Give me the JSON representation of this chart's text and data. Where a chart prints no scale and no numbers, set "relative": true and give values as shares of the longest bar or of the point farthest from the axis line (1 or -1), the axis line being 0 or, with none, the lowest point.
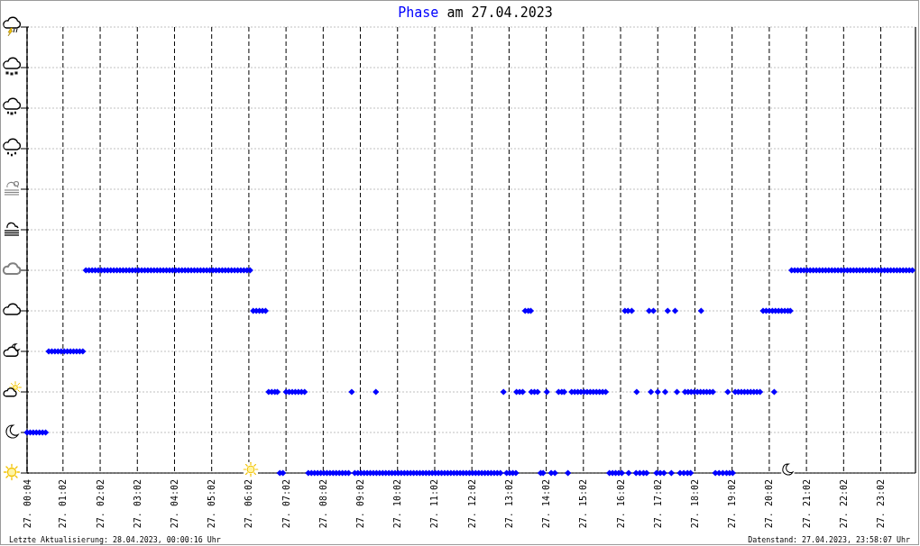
{
  "chart_data": {
    "type": "scatter",
    "title": "am 27.04.2023",
    "relative": true,
    "xlim": [
      "2023-04-27T00:04",
      "2023-04-27T23:58"
    ],
    "xticks": [
      {
        "value": "2023-04-27T00:04",
        "label": "27. 00:04"
      },
      {
        "value": "2023-04-27T01:02",
        "label": "27. 01:02"
      },
      {
        "value": "2023-04-27T02:02",
        "label": "27. 02:02"
      },
      {
        "value": "2023-04-27T03:02",
        "label": "27. 03:02"
      },
      {
        "value": "2023-04-27T04:02",
        "label": "27. 04:02"
      },
      {
        "value": "2023-04-27T05:02",
        "label": "27. 05:02"
      },
      {
        "value": "2023-04-27T06:02",
        "label": "27. 06:02"
      },
      {
        "value": "2023-04-27T07:02",
        "label": "27. 07:02"
      },
      {
        "value": "2023-04-27T08:02",
        "label": "27. 08:02"
      },
      {
        "value": "2023-04-27T09:02",
        "label": "27. 09:02"
      },
      {
        "value": "2023-04-27T10:02",
        "label": "27. 10:02"
      },
      {
        "value": "2023-04-27T11:02",
        "label": "27. 11:02"
      },
      {
        "value": "2023-04-27T12:02",
        "label": "27. 12:02"
      },
      {
        "value": "2023-04-27T13:02",
        "label": "27. 13:02"
      },
      {
        "value": "2023-04-27T14:02",
        "label": "27. 14:02"
      },
      {
        "value": "2023-04-27T15:02",
        "label": "27. 15:02"
      },
      {
        "value": "2023-04-27T16:02",
        "label": "27. 16:02"
      },
      {
        "value": "2023-04-27T17:02",
        "label": "27. 17:02"
      },
      {
        "value": "2023-04-27T18:02",
        "label": "27. 18:02"
      },
      {
        "value": "2023-04-27T19:02",
        "label": "27. 19:02"
      },
      {
        "value": "2023-04-27T20:02",
        "label": "27. 20:02"
      },
      {
        "value": "2023-04-27T21:02",
        "label": "27. 21:02"
      },
      {
        "value": "2023-04-27T22:02",
        "label": "27. 22:02"
      },
      {
        "value": "2023-04-27T23:02",
        "label": "27. 23:02"
      }
    ],
    "grid": true,
    "marker": "diamond",
    "annotations": [
      "Letzte Aktualisierung: 28.04.2023, 00:00:16 Uhr",
      "Datenstand: 27.04.2023, 23:58:07 Uhr"
    ],
    "series": [
      {
        "name": "Phase",
        "color": "#0000ff",
        "x": [
          "2023-04-27T00:04",
          "2023-04-27T00:09",
          "2023-04-27T00:14",
          "2023-04-27T00:19",
          "2023-04-27T00:24",
          "2023-04-27T00:29",
          "2023-04-27T00:34",
          "2023-04-27T00:39",
          "2023-04-27T00:44",
          "2023-04-27T00:49",
          "2023-04-27T00:54",
          "2023-04-27T00:59",
          "2023-04-27T01:04",
          "2023-04-27T01:09",
          "2023-04-27T01:14",
          "2023-04-27T01:19",
          "2023-04-27T01:24",
          "2023-04-27T01:29",
          "2023-04-27T01:34",
          "2023-04-27T01:39",
          "2023-04-27T01:44",
          "2023-04-27T01:49",
          "2023-04-27T01:54",
          "2023-04-27T01:59",
          "2023-04-27T02:04",
          "2023-04-27T02:09",
          "2023-04-27T02:14",
          "2023-04-27T02:19",
          "2023-04-27T02:24",
          "2023-04-27T02:29",
          "2023-04-27T02:34",
          "2023-04-27T02:39",
          "2023-04-27T02:44",
          "2023-04-27T02:49",
          "2023-04-27T02:54",
          "2023-04-27T02:59",
          "2023-04-27T03:04",
          "2023-04-27T03:09",
          "2023-04-27T03:14",
          "2023-04-27T03:19",
          "2023-04-27T03:24",
          "2023-04-27T03:29",
          "2023-04-27T03:34",
          "2023-04-27T03:39",
          "2023-04-27T03:44",
          "2023-04-27T03:49",
          "2023-04-27T03:54",
          "2023-04-27T03:59",
          "2023-04-27T04:04",
          "2023-04-27T04:09",
          "2023-04-27T04:14",
          "2023-04-27T04:19",
          "2023-04-27T04:24",
          "2023-04-27T04:29",
          "2023-04-27T04:34",
          "2023-04-27T04:39",
          "2023-04-27T04:44",
          "2023-04-27T04:49",
          "2023-04-27T04:54",
          "2023-04-27T04:59",
          "2023-04-27T05:04",
          "2023-04-27T05:09",
          "2023-04-27T05:14",
          "2023-04-27T05:19",
          "2023-04-27T05:24",
          "2023-04-27T05:29",
          "2023-04-27T05:34",
          "2023-04-27T05:39",
          "2023-04-27T05:44",
          "2023-04-27T05:49",
          "2023-04-27T05:54",
          "2023-04-27T05:59",
          "2023-04-27T06:04",
          "2023-04-27T06:09",
          "2023-04-27T06:14",
          "2023-04-27T06:19",
          "2023-04-27T06:24",
          "2023-04-27T06:29",
          "2023-04-27T06:34",
          "2023-04-27T06:39",
          "2023-04-27T06:44",
          "2023-04-27T06:48",
          "2023-04-27T06:52",
          "2023-04-27T06:57",
          "2023-04-27T07:02",
          "2023-04-27T07:07",
          "2023-04-27T07:12",
          "2023-04-27T07:17",
          "2023-04-27T07:22",
          "2023-04-27T07:27",
          "2023-04-27T07:32",
          "2023-04-27T07:38",
          "2023-04-27T07:43",
          "2023-04-27T07:48",
          "2023-04-27T07:53",
          "2023-04-27T07:58",
          "2023-04-27T08:03",
          "2023-04-27T08:08",
          "2023-04-27T08:13",
          "2023-04-27T08:18",
          "2023-04-27T08:23",
          "2023-04-27T08:28",
          "2023-04-27T08:33",
          "2023-04-27T08:38",
          "2023-04-27T08:43",
          "2023-04-27T08:48",
          "2023-04-27T08:53",
          "2023-04-27T08:58",
          "2023-04-27T09:03",
          "2023-04-27T09:08",
          "2023-04-27T09:13",
          "2023-04-27T09:18",
          "2023-04-27T09:23",
          "2023-04-27T09:27",
          "2023-04-27T09:28",
          "2023-04-27T09:33",
          "2023-04-27T09:38",
          "2023-04-27T09:43",
          "2023-04-27T09:48",
          "2023-04-27T09:53",
          "2023-04-27T09:58",
          "2023-04-27T10:03",
          "2023-04-27T10:08",
          "2023-04-27T10:13",
          "2023-04-27T10:18",
          "2023-04-27T10:23",
          "2023-04-27T10:28",
          "2023-04-27T10:33",
          "2023-04-27T10:38",
          "2023-04-27T10:43",
          "2023-04-27T10:48",
          "2023-04-27T10:53",
          "2023-04-27T10:58",
          "2023-04-27T11:03",
          "2023-04-27T11:08",
          "2023-04-27T11:13",
          "2023-04-27T11:18",
          "2023-04-27T11:23",
          "2023-04-27T11:28",
          "2023-04-27T11:33",
          "2023-04-27T11:38",
          "2023-04-27T11:43",
          "2023-04-27T11:48",
          "2023-04-27T11:53",
          "2023-04-27T11:58",
          "2023-04-27T12:03",
          "2023-04-27T12:08",
          "2023-04-27T12:13",
          "2023-04-27T12:18",
          "2023-04-27T12:23",
          "2023-04-27T12:28",
          "2023-04-27T12:33",
          "2023-04-27T12:38",
          "2023-04-27T12:43",
          "2023-04-27T12:48",
          "2023-04-27T12:53",
          "2023-04-27T12:58",
          "2023-04-27T13:03",
          "2023-04-27T13:08",
          "2023-04-27T13:13",
          "2023-04-27T13:14",
          "2023-04-27T13:19",
          "2023-04-27T13:24",
          "2023-04-27T13:28",
          "2023-04-27T13:33",
          "2023-04-27T13:37",
          "2023-04-27T13:38",
          "2023-04-27T13:43",
          "2023-04-27T13:48",
          "2023-04-27T13:53",
          "2023-04-27T13:57",
          "2023-04-27T14:03",
          "2023-04-27T14:10",
          "2023-04-27T14:16",
          "2023-04-27T14:22",
          "2023-04-27T14:27",
          "2023-04-27T14:31",
          "2023-04-27T14:37",
          "2023-04-27T14:43",
          "2023-04-27T14:48",
          "2023-04-27T14:53",
          "2023-04-27T14:58",
          "2023-04-27T15:03",
          "2023-04-27T15:08",
          "2023-04-27T15:13",
          "2023-04-27T15:18",
          "2023-04-27T15:23",
          "2023-04-27T15:28",
          "2023-04-27T15:33",
          "2023-04-27T15:38",
          "2023-04-27T15:44",
          "2023-04-27T15:49",
          "2023-04-27T15:54",
          "2023-04-27T15:59",
          "2023-04-27T16:04",
          "2023-04-27T16:09",
          "2023-04-27T16:14",
          "2023-04-27T16:15",
          "2023-04-27T16:20",
          "2023-04-27T16:27",
          "2023-04-27T16:28",
          "2023-04-27T16:33",
          "2023-04-27T16:39",
          "2023-04-27T16:44",
          "2023-04-27T16:48",
          "2023-04-27T16:51",
          "2023-04-27T16:55",
          "2023-04-27T17:00",
          "2023-04-27T17:02",
          "2023-04-27T17:06",
          "2023-04-27T17:12",
          "2023-04-27T17:14",
          "2023-04-27T17:18",
          "2023-04-27T17:24",
          "2023-04-27T17:30",
          "2023-04-27T17:33",
          "2023-04-27T17:38",
          "2023-04-27T17:44",
          "2023-04-27T17:46",
          "2023-04-27T17:50",
          "2023-04-27T17:51",
          "2023-04-27T17:55",
          "2023-04-27T17:56",
          "2023-04-27T18:01",
          "2023-04-27T18:06",
          "2023-04-27T18:11",
          "2023-04-27T18:12",
          "2023-04-27T18:16",
          "2023-04-27T18:21",
          "2023-04-27T18:26",
          "2023-04-27T18:31",
          "2023-04-27T18:35",
          "2023-04-27T18:41",
          "2023-04-27T18:47",
          "2023-04-27T18:53",
          "2023-04-27T18:55",
          "2023-04-27T18:58",
          "2023-04-27T19:03",
          "2023-04-27T19:07",
          "2023-04-27T19:12",
          "2023-04-27T19:17",
          "2023-04-27T19:22",
          "2023-04-27T19:27",
          "2023-04-27T19:32",
          "2023-04-27T19:37",
          "2023-04-27T19:42",
          "2023-04-27T19:47",
          "2023-04-27T19:52",
          "2023-04-27T19:57",
          "2023-04-27T20:02",
          "2023-04-27T20:07",
          "2023-04-27T20:10",
          "2023-04-27T20:12",
          "2023-04-27T20:17",
          "2023-04-27T20:22",
          "2023-04-27T20:27",
          "2023-04-27T20:32",
          "2023-04-27T20:36",
          "2023-04-27T20:38",
          "2023-04-27T20:43",
          "2023-04-27T20:48",
          "2023-04-27T20:53",
          "2023-04-27T20:58",
          "2023-04-27T21:03",
          "2023-04-27T21:08",
          "2023-04-27T21:13",
          "2023-04-27T21:18",
          "2023-04-27T21:23",
          "2023-04-27T21:28",
          "2023-04-27T21:33",
          "2023-04-27T21:38",
          "2023-04-27T21:43",
          "2023-04-27T21:48",
          "2023-04-27T21:53",
          "2023-04-27T21:58",
          "2023-04-27T22:03",
          "2023-04-27T22:08",
          "2023-04-27T22:13",
          "2023-04-27T22:18",
          "2023-04-27T22:23",
          "2023-04-27T22:28",
          "2023-04-27T22:33",
          "2023-04-27T22:38",
          "2023-04-27T22:43",
          "2023-04-27T22:48",
          "2023-04-27T22:53",
          "2023-04-27T22:58",
          "2023-04-27T23:03",
          "2023-04-27T23:08",
          "2023-04-27T23:13",
          "2023-04-27T23:18",
          "2023-04-27T23:23",
          "2023-04-27T23:28",
          "2023-04-27T23:33",
          "2023-04-27T23:38",
          "2023-04-27T23:43",
          "2023-04-27T23:48",
          "2023-04-27T23:53"
        ],
        "values": [
          0.2,
          0.2,
          0.2,
          0.2,
          0.2,
          0.2,
          0.2,
          0.6,
          0.6,
          0.6,
          0.6,
          0.6,
          0.6,
          0.6,
          0.6,
          0.6,
          0.6,
          0.6,
          0.6,
          1,
          1,
          1,
          1,
          1,
          1,
          1,
          1,
          1,
          1,
          1,
          1,
          1,
          1,
          1,
          1,
          1,
          1,
          1,
          1,
          1,
          1,
          1,
          1,
          1,
          1,
          1,
          1,
          1,
          1,
          1,
          1,
          1,
          1,
          1,
          1,
          1,
          1,
          1,
          1,
          1,
          1,
          1,
          1,
          1,
          1,
          1,
          1,
          1,
          1,
          1,
          1,
          1,
          1,
          0.8,
          0.8,
          0.8,
          0.8,
          0.8,
          0.4,
          0.4,
          0.4,
          0.4,
          0,
          0,
          0.4,
          0.4,
          0.4,
          0.4,
          0.4,
          0.4,
          0.4,
          0,
          0,
          0,
          0,
          0,
          0,
          0,
          0,
          0,
          0,
          0,
          0,
          0,
          0,
          0.4,
          0,
          0,
          0,
          0,
          0,
          0,
          0,
          0.4,
          0,
          0,
          0,
          0,
          0,
          0,
          0,
          0,
          0,
          0,
          0,
          0,
          0,
          0,
          0,
          0,
          0,
          0,
          0,
          0,
          0,
          0,
          0,
          0,
          0,
          0,
          0,
          0,
          0,
          0,
          0,
          0,
          0,
          0,
          0,
          0,
          0,
          0,
          0,
          0,
          0,
          0.4,
          0,
          0,
          0,
          0,
          0.4,
          0.4,
          0.4,
          0.8,
          0.8,
          0.8,
          0.4,
          0.4,
          0.4,
          0,
          0,
          0.4,
          0,
          0,
          0.4,
          0.4,
          0.4,
          0,
          0.4,
          0.4,
          0.4,
          0.4,
          0.4,
          0.4,
          0.4,
          0.4,
          0.4,
          0.4,
          0.4,
          0.4,
          0,
          0,
          0,
          0,
          0,
          0.8,
          0.8,
          0,
          0.8,
          0,
          0.4,
          0,
          0,
          0,
          0.8,
          0.4,
          0.8,
          0,
          0.4,
          0,
          0,
          0.4,
          0.8,
          0,
          0.8,
          0.4,
          0,
          0,
          0.4,
          0,
          0.4,
          0,
          0.4,
          0.4,
          0.4,
          0.4,
          0.8,
          0.4,
          0.4,
          0.4,
          0.4,
          0,
          0,
          0,
          0,
          0.4,
          0,
          0,
          0.4,
          0.4,
          0.4,
          0.4,
          0.4,
          0.4,
          0.4,
          0.4,
          0.4,
          0.8,
          0.8,
          0.8,
          0.8,
          0.4,
          0.8,
          0.8,
          0.8,
          0.8,
          0.8,
          0.8,
          1,
          1,
          1,
          1,
          1,
          1,
          1,
          1,
          1,
          1,
          1,
          1,
          1,
          1,
          1,
          1,
          1,
          1,
          1,
          1,
          1,
          1,
          1,
          1,
          1,
          1,
          1,
          1,
          1,
          1,
          1,
          1,
          1,
          1,
          1,
          1,
          1,
          1,
          1,
          1
        ]
      }
    ]
  }
}
